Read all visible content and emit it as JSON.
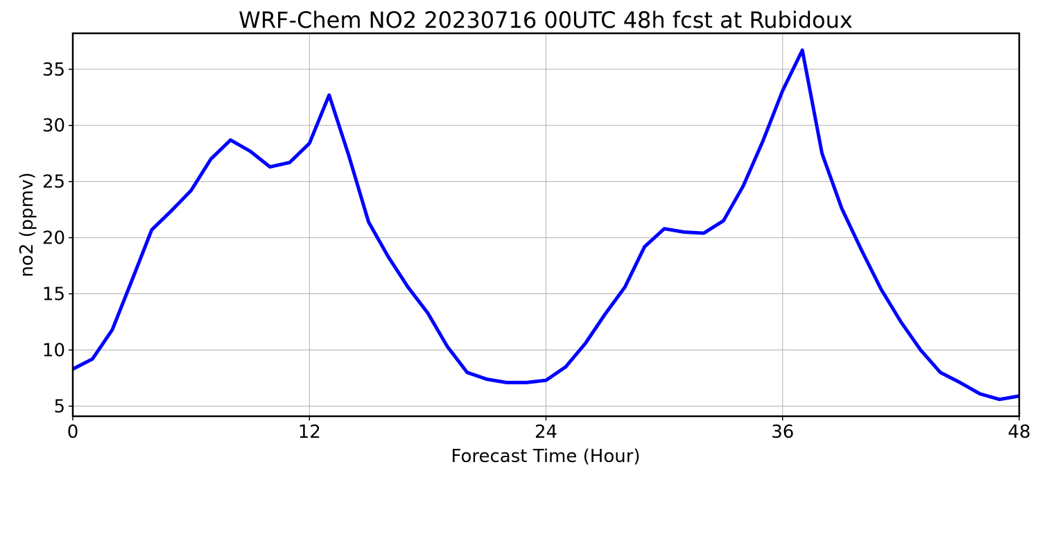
{
  "chart_data": {
    "type": "line",
    "title": "WRF-Chem NO2  20230716 00UTC 48h fcst at Rubidoux",
    "xlabel": "Forecast Time (Hour)",
    "ylabel": "no2  (ppmv)",
    "xlim": [
      0,
      48
    ],
    "ylim": [
      4.1,
      38.2
    ],
    "x_ticks": [
      0,
      12,
      24,
      36,
      48
    ],
    "x_tick_labels": [
      "0",
      "12",
      "24",
      "36",
      "48"
    ],
    "y_ticks": [
      5,
      10,
      15,
      20,
      25,
      30,
      35
    ],
    "y_tick_labels": [
      "5",
      "10",
      "15",
      "20",
      "25",
      "30",
      "35"
    ],
    "grid": true,
    "legend": "none",
    "series": [
      {
        "color": "#0000ff",
        "x": [
          0,
          1,
          2,
          3,
          4,
          5,
          6,
          7,
          8,
          9,
          10,
          11,
          12,
          13,
          14,
          15,
          16,
          17,
          18,
          19,
          20,
          21,
          22,
          23,
          24,
          25,
          26,
          27,
          28,
          29,
          30,
          31,
          32,
          33,
          34,
          35,
          36,
          37,
          38,
          39,
          40,
          41,
          42,
          43,
          44,
          45,
          46,
          47,
          48
        ],
        "values": [
          8.3,
          9.2,
          11.8,
          16.2,
          20.7,
          22.4,
          24.2,
          27.0,
          28.7,
          27.7,
          26.3,
          26.7,
          28.4,
          32.7,
          27.3,
          21.4,
          18.3,
          15.6,
          13.3,
          10.3,
          8.0,
          7.4,
          7.1,
          7.1,
          7.3,
          8.5,
          10.6,
          13.2,
          15.6,
          19.2,
          20.8,
          20.5,
          20.4,
          21.5,
          24.6,
          28.6,
          33.1,
          36.7,
          27.5,
          22.6,
          18.9,
          15.4,
          12.5,
          10.0,
          8.0,
          7.1,
          6.1,
          5.6,
          5.9
        ]
      }
    ]
  }
}
